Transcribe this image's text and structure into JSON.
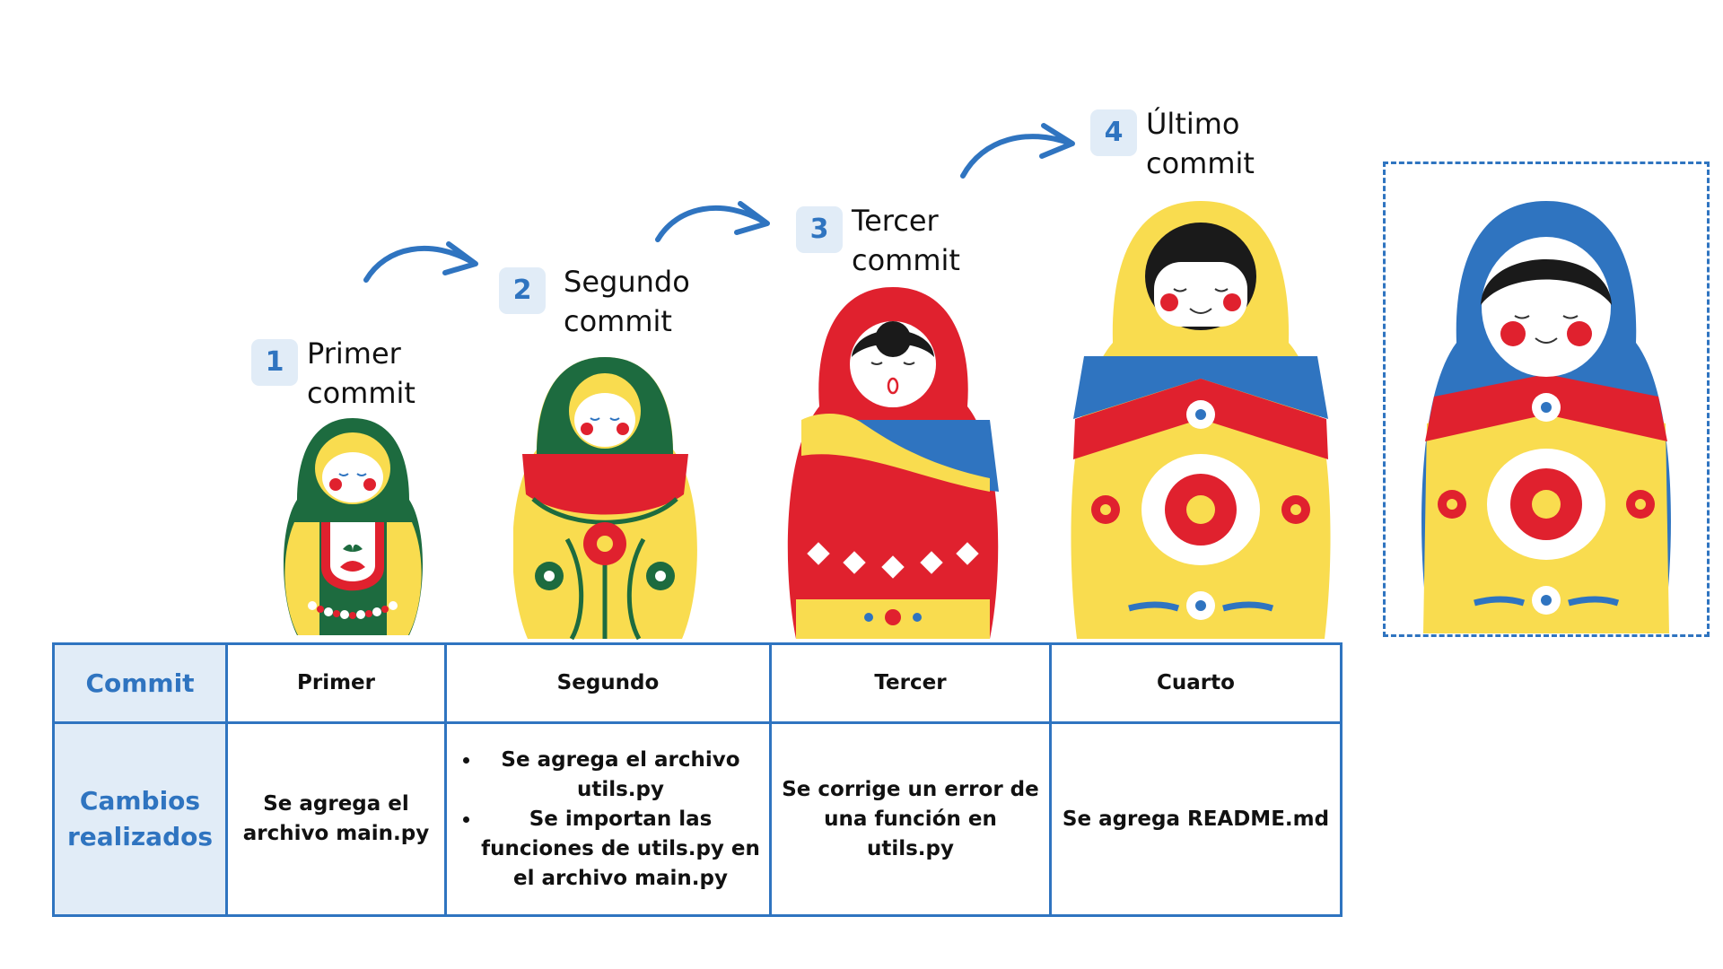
{
  "steps": [
    {
      "number": "1",
      "label": "Primer\ncommit"
    },
    {
      "number": "2",
      "label": "Segundo\ncommit"
    },
    {
      "number": "3",
      "label": "Tercer\ncommit"
    },
    {
      "number": "4",
      "label": "Último\ncommit"
    }
  ],
  "table": {
    "row_headers": {
      "commit": "Commit",
      "changes": "Cambios realizados"
    },
    "columns": [
      {
        "name": "Primer",
        "changes": [
          "Se agrega el archivo main.py"
        ]
      },
      {
        "name": "Segundo",
        "changes": [
          "Se agrega el archivo utils.py",
          "Se importan las funciones de utils.py en el archivo main.py"
        ]
      },
      {
        "name": "Tercer",
        "changes": [
          "Se corrige un error de una función en utils.py"
        ]
      },
      {
        "name": "Cuarto",
        "changes": [
          "Se agrega README.md"
        ]
      }
    ]
  },
  "colors": {
    "accent_blue": "#2f74c0",
    "header_fill": "#e1ecf7",
    "doll_green": "#1d6b3f",
    "doll_yellow": "#f9dc4f",
    "doll_red": "#e0212e",
    "doll_blue": "#2f74c0"
  }
}
